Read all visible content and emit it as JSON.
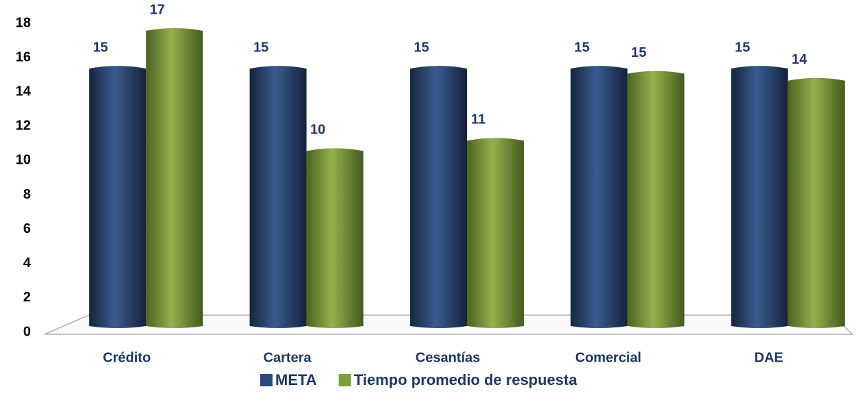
{
  "chart_data": {
    "type": "bar",
    "categories": [
      "Crédito",
      "Cartera",
      "Cesantías",
      "Comercial",
      "DAE"
    ],
    "series": [
      {
        "name": "META",
        "color": "#2c4a78",
        "values": [
          15,
          15,
          15,
          15,
          15
        ]
      },
      {
        "name": "Tiempo promedio de respuesta",
        "color": "#7f9f3c",
        "values": [
          17.2,
          10.2,
          10.8,
          14.7,
          14.3
        ],
        "value_labels": [
          "17",
          "10",
          "11",
          "15",
          "14"
        ]
      }
    ],
    "ylim": [
      0,
      18
    ],
    "yticks": [
      0,
      2,
      4,
      6,
      8,
      10,
      12,
      14,
      16,
      18
    ],
    "legend": "bottom"
  }
}
